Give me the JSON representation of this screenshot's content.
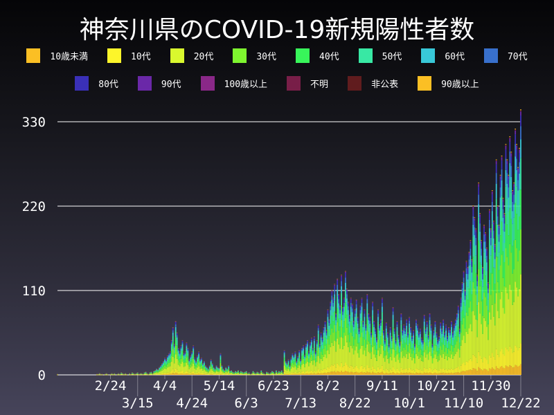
{
  "chart_data": {
    "type": "bar",
    "stacked": true,
    "title": "神奈川県のCOVID-19新規陽性者数",
    "xlabel": "",
    "ylabel": "",
    "ylim": [
      0,
      330
    ],
    "y_ticks": [
      0,
      110,
      220,
      330
    ],
    "grid": "horizontal",
    "legend_position": "top",
    "x_ticks": [
      "2/24",
      "3/15",
      "4/4",
      "4/24",
      "5/14",
      "6/3",
      "6/23",
      "7/13",
      "8/2",
      "8/22",
      "9/11",
      "10/1",
      "10/21",
      "11/10",
      "11/30",
      "12/22"
    ],
    "legend": [
      {
        "name": "10歳未満",
        "color": "#fbbf24"
      },
      {
        "name": "10代",
        "color": "#fdf52a"
      },
      {
        "name": "20代",
        "color": "#d9f82e"
      },
      {
        "name": "30代",
        "color": "#7ef52f"
      },
      {
        "name": "40代",
        "color": "#38f55a"
      },
      {
        "name": "50代",
        "color": "#38e8a4"
      },
      {
        "name": "60代",
        "color": "#38c8d8"
      },
      {
        "name": "70代",
        "color": "#3870cc"
      },
      {
        "name": "80代",
        "color": "#3a30b8"
      },
      {
        "name": "90代",
        "color": "#6a28a8"
      },
      {
        "name": "100歳以上",
        "color": "#8a2888"
      },
      {
        "name": "不明",
        "color": "#781e48"
      },
      {
        "name": "非公表",
        "color": "#601c1e"
      },
      {
        "name": "90歳以上",
        "color": "#fbbf24"
      }
    ],
    "age_share_estimate": [
      0.04,
      0.08,
      0.26,
      0.17,
      0.15,
      0.12,
      0.07,
      0.05,
      0.04,
      0.015,
      0,
      0.003,
      0.002,
      0.003
    ],
    "daily_totals": [
      1,
      0,
      0,
      0,
      0,
      0,
      0,
      0,
      0,
      0,
      0,
      0,
      0,
      0,
      0,
      0,
      0,
      0,
      0,
      0,
      0,
      0,
      0,
      0,
      0,
      0,
      0,
      0,
      0,
      1,
      1,
      2,
      1,
      1,
      0,
      1,
      2,
      1,
      0,
      1,
      2,
      1,
      2,
      0,
      1,
      2,
      1,
      3,
      2,
      1,
      2,
      1,
      0,
      2,
      1,
      3,
      2,
      1,
      2,
      3,
      1,
      2,
      2,
      1,
      3,
      4,
      2,
      1,
      3,
      4,
      2,
      5,
      6,
      8,
      7,
      10,
      12,
      15,
      18,
      22,
      20,
      25,
      28,
      30,
      45,
      62,
      40,
      70,
      55,
      35,
      30,
      38,
      45,
      28,
      30,
      42,
      35,
      20,
      25,
      30,
      38,
      22,
      18,
      25,
      30,
      20,
      22,
      15,
      18,
      12,
      10,
      8,
      12,
      20,
      15,
      10,
      8,
      12,
      10,
      9,
      28,
      12,
      8,
      6,
      10,
      8,
      12,
      5,
      6,
      4,
      3,
      5,
      4,
      6,
      3,
      5,
      4,
      3,
      4,
      5,
      2,
      3,
      1,
      2,
      5,
      3,
      2,
      4,
      3,
      2,
      6,
      3,
      2,
      1,
      4,
      3,
      2,
      3,
      5,
      4,
      2,
      6,
      3,
      5,
      4,
      6,
      3,
      32,
      18,
      15,
      20,
      12,
      22,
      28,
      25,
      30,
      18,
      24,
      32,
      20,
      35,
      38,
      26,
      40,
      45,
      30,
      42,
      48,
      35,
      50,
      30,
      45,
      65,
      40,
      55,
      48,
      62,
      70,
      58,
      85,
      72,
      95,
      110,
      100,
      118,
      80,
      125,
      105,
      90,
      130,
      88,
      100,
      135,
      112,
      95,
      78,
      100,
      92,
      70,
      85,
      98,
      75,
      60,
      90,
      100,
      70,
      85,
      65,
      105,
      80,
      75,
      55,
      95,
      70,
      60,
      48,
      85,
      65,
      72,
      100,
      58,
      45,
      68,
      55,
      40,
      62,
      50,
      88,
      60,
      45,
      70,
      52,
      42,
      80,
      58,
      65,
      60,
      72,
      55,
      75,
      62,
      50,
      58,
      40,
      72,
      65,
      55,
      60,
      48,
      45,
      78,
      60,
      70,
      52,
      80,
      65,
      40,
      58,
      70,
      55,
      45,
      50,
      68,
      60,
      72,
      55,
      65,
      50,
      62,
      58,
      70,
      55,
      65,
      72,
      80,
      90,
      60,
      100,
      120,
      135,
      110,
      148,
      140,
      160,
      175,
      150,
      220,
      205,
      190,
      130,
      250,
      210,
      175,
      140,
      195,
      185,
      165,
      120,
      215,
      190,
      240,
      200,
      170,
      280,
      220,
      195,
      260,
      285,
      230,
      210,
      300,
      280,
      260,
      310,
      290,
      240,
      250,
      320,
      300,
      270,
      295,
      345
    ]
  }
}
